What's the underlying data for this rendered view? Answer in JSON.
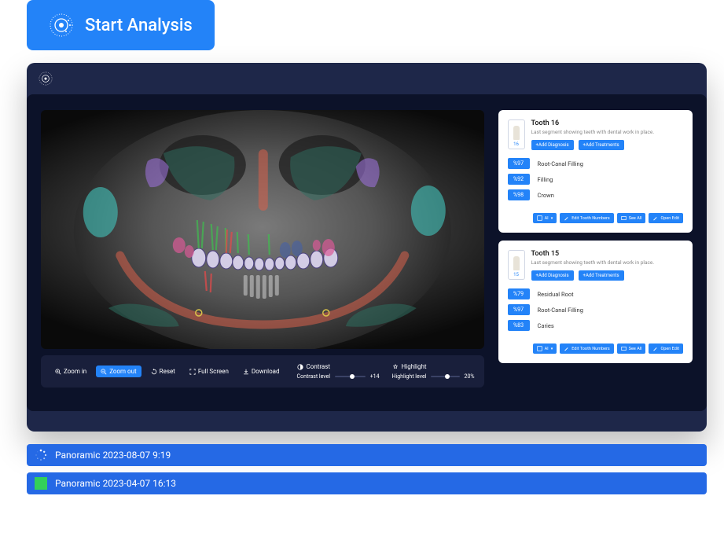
{
  "colors": {
    "primary": "#2383F8",
    "panel_dark": "#0C1229",
    "frame": "#1E2749",
    "control_bg": "#191F3B",
    "session_blue": "#2569E5",
    "green": "#33D05A"
  },
  "top_button": {
    "label": "Start Analysis"
  },
  "controls": {
    "zoom_in": "Zoom in",
    "zoom_out": "Zoom out",
    "reset": "Reset",
    "fullscreen": "Full Screen",
    "download": "Download",
    "contrast": {
      "label": "Contrast",
      "sub": "Contrast level",
      "value": "+14"
    },
    "highlight": {
      "label": "Highlight",
      "sub": "Highlight level",
      "value": "20%"
    }
  },
  "xray_overlays": {
    "colors": {
      "jaw": "#d9614b",
      "jaw_opacity": 0.55,
      "sinus": "#2e6e5f",
      "sinus_opacity": 0.5,
      "condyle": "#42c5bd",
      "condyle_opacity": 0.6,
      "violet": "#9a6fd6",
      "violet_opacity": 0.55,
      "root_green": "#3fbf4f",
      "root_opacity": 0.6,
      "root_red": "#e14a4a",
      "tooth_light": "#d9d2ec",
      "tooth_border": "#4a3f80",
      "pink": "#d85a95"
    }
  },
  "teeth": [
    {
      "number": "16",
      "title": "Tooth 16",
      "desc": "Last segment showing teeth with dental work in place.",
      "add_diag": "+Add Diagnosis",
      "add_treat": "+Add Treatments",
      "items": [
        {
          "pct": "%97",
          "label": "Root-Canal Filling"
        },
        {
          "pct": "%92",
          "label": "Filling"
        },
        {
          "pct": "%98",
          "label": "Crown"
        }
      ]
    },
    {
      "number": "15",
      "title": "Tooth 15",
      "desc": "Last segment showing teeth with dental work in place.",
      "add_diag": "+Add Diagnosis",
      "add_treat": "+Add Treatments",
      "items": [
        {
          "pct": "%79",
          "label": "Residual Root"
        },
        {
          "pct": "%97",
          "label": "Root-Canal Filling"
        },
        {
          "pct": "%83",
          "label": "Caries"
        }
      ]
    }
  ],
  "card_footer": {
    "ai": "AI",
    "edit_numbers": "Edit Tooth Numbers",
    "see_all": "See All",
    "open_edit": "Open Edit"
  },
  "sessions": [
    {
      "icon": "spinner",
      "label": "Panoramic 2023-08-07 9:19"
    },
    {
      "icon": "square",
      "label": "Panoramic 2023-04-07 16:13"
    }
  ]
}
